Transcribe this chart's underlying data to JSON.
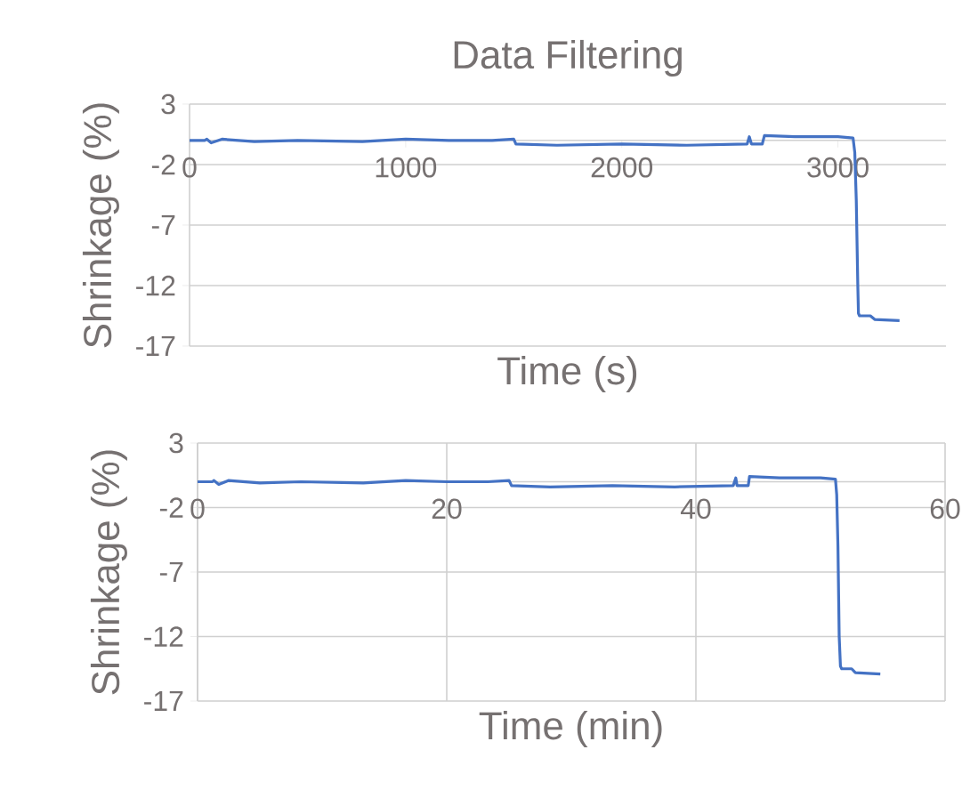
{
  "chart_data": [
    {
      "type": "line",
      "title": "Data Filtering",
      "xlabel": "Time (s)",
      "ylabel": "Shrinkage (%)",
      "color": "#4472c4",
      "grid": "y",
      "xlim": [
        0,
        3500
      ],
      "xticks": [
        0,
        1000,
        2000,
        3000
      ],
      "ylim": [
        -17,
        3
      ],
      "yticks": [
        -17,
        -12,
        -7,
        -2,
        3
      ],
      "x": [
        0,
        70,
        80,
        100,
        150,
        300,
        500,
        800,
        1000,
        1200,
        1400,
        1500,
        1510,
        1700,
        2000,
        2300,
        2580,
        2590,
        2600,
        2650,
        2660,
        2800,
        3000,
        3070,
        3078,
        3085,
        3092,
        3095,
        3100,
        3150,
        3170,
        3285
      ],
      "values": [
        0,
        0,
        0.1,
        -0.2,
        0.1,
        -0.1,
        0,
        -0.1,
        0.1,
        0,
        0,
        0.1,
        -0.3,
        -0.4,
        -0.3,
        -0.4,
        -0.3,
        0.3,
        -0.3,
        -0.3,
        0.4,
        0.3,
        0.3,
        0.2,
        -1,
        -5,
        -12,
        -14.3,
        -14.5,
        -14.5,
        -14.8,
        -14.9
      ]
    },
    {
      "type": "line",
      "xlabel": "Time (min)",
      "ylabel": "Shrinkage (%)",
      "color": "#4472c4",
      "grid": true,
      "xlim": [
        0,
        60
      ],
      "xticks": [
        0,
        20,
        40,
        60
      ],
      "ylim": [
        -17,
        3
      ],
      "yticks": [
        -17,
        -12,
        -7,
        -2,
        3
      ],
      "x": [
        0,
        1.2,
        1.3,
        1.7,
        2.5,
        5,
        8.3,
        13.3,
        16.7,
        20,
        23.3,
        25,
        25.2,
        28.3,
        33.3,
        38.3,
        43,
        43.2,
        43.3,
        44.2,
        44.3,
        46.7,
        50,
        51.2,
        51.3,
        51.4,
        51.5,
        51.6,
        51.7,
        52.5,
        52.8,
        54.8
      ],
      "values": [
        0,
        0,
        0.1,
        -0.2,
        0.1,
        -0.1,
        0,
        -0.1,
        0.1,
        0,
        0,
        0.1,
        -0.3,
        -0.4,
        -0.3,
        -0.4,
        -0.3,
        0.3,
        -0.3,
        -0.3,
        0.4,
        0.3,
        0.3,
        0.2,
        -1,
        -5,
        -12,
        -14.3,
        -14.5,
        -14.5,
        -14.8,
        -14.9
      ]
    }
  ]
}
